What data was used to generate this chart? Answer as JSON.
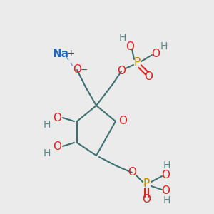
{
  "background_color": "#ebebeb",
  "bond_color": "#3d7070",
  "bond_width": 1.5,
  "dashed_bond_color": "#6699cc",
  "atom_colors": {
    "Na": "#2266bb",
    "O": "#dd2222",
    "P": "#bb8800",
    "H": "#5a8888",
    "C": "#3d7070"
  }
}
